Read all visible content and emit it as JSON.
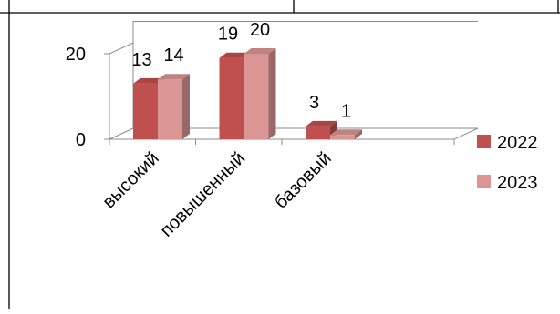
{
  "chart_data": {
    "type": "bar",
    "categories": [
      "высокий",
      "повышенный",
      "базовый"
    ],
    "series": [
      {
        "name": "2022",
        "values": [
          13,
          19,
          3
        ],
        "color": "#C0504D"
      },
      {
        "name": "2023",
        "values": [
          14,
          20,
          1
        ],
        "color": "#D99694"
      }
    ],
    "data_labels": [
      [
        "13",
        "19",
        "3"
      ],
      [
        "14",
        "20",
        "1"
      ]
    ],
    "y_ticks": [
      0,
      20
    ],
    "ylim": [
      0,
      25
    ],
    "title": "",
    "xlabel": "",
    "ylabel": "",
    "grid": true,
    "legend_position": "right",
    "style": "3d-clustered-column"
  }
}
